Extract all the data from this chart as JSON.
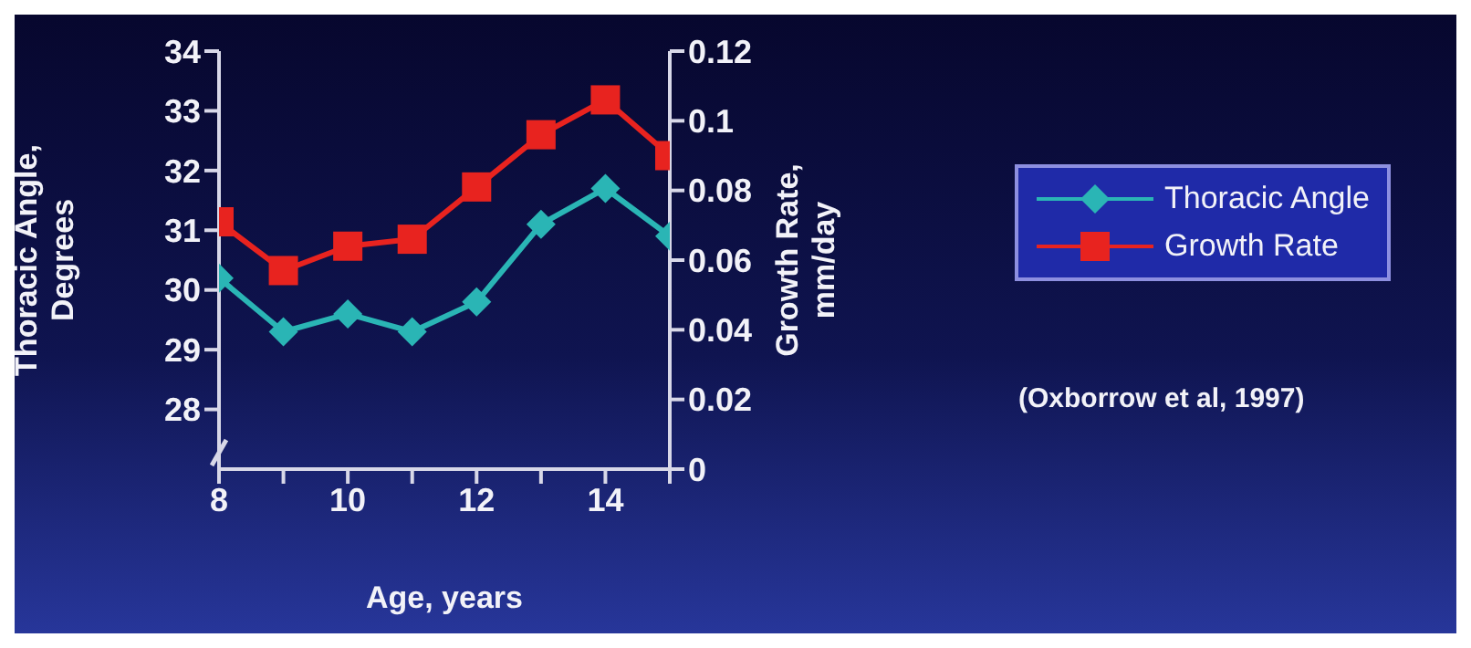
{
  "chart_data": {
    "type": "line",
    "xlabel": "Age, years",
    "ylabel": "Thoracic Angle,\nDegrees",
    "y2label": "Growth Rate,\nmm/day",
    "x": [
      8,
      9,
      10,
      11,
      12,
      13,
      14,
      15
    ],
    "series": [
      {
        "name": "Thoracic Angle",
        "color": "#2ab5b5",
        "marker": "diamond",
        "values": [
          30.2,
          29.3,
          29.6,
          29.3,
          29.8,
          31.1,
          31.7,
          30.9
        ]
      },
      {
        "name": "Growth Rate",
        "color": "#e8231f",
        "marker": "square",
        "axis": "y2",
        "values": [
          0.071,
          0.057,
          0.064,
          0.066,
          0.081,
          0.096,
          0.106,
          0.09
        ]
      }
    ],
    "xlim": [
      8,
      15
    ],
    "xticks": [
      8,
      {
        "value": 9,
        "label": null
      },
      10,
      {
        "value": 11,
        "label": null
      },
      12,
      {
        "value": 13,
        "label": null
      },
      14,
      {
        "value": 15,
        "label": null
      }
    ],
    "ylim": [
      27,
      34
    ],
    "yticks": [
      28,
      29,
      30,
      31,
      32,
      33,
      34
    ],
    "y2lim": [
      0,
      0.12
    ],
    "y2ticks": [
      0,
      0.02,
      0.04,
      0.06,
      0.08,
      0.1,
      0.12
    ],
    "line_style": "solid",
    "legend": "right",
    "grid": false,
    "annotations": [
      "(Oxborrow et al, 1997)"
    ]
  }
}
